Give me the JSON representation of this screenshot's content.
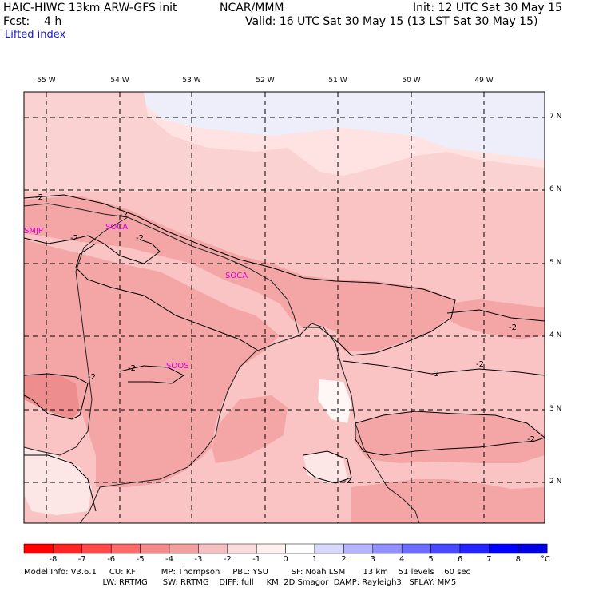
{
  "header": {
    "model": "HAIC-HIWC 13km ARW-GFS init",
    "org": "NCAR/MMM",
    "init": "Init: 12 UTC Sat 30 May 15",
    "fcst": "Fcst:    4 h",
    "valid": "Valid: 16 UTC Sat 30 May 15 (13 LST Sat 30 May 15)",
    "field": "Lifted index"
  },
  "map": {
    "lon_labels": [
      "55 W",
      "54 W",
      "53 W",
      "52 W",
      "51 W",
      "50 W",
      "49 W"
    ],
    "lat_labels": [
      "7 N",
      "6 N",
      "5 N",
      "4 N",
      "3 N",
      "2 N"
    ],
    "stations": [
      "SMJP",
      "SOCA",
      "SOCA",
      "SOOS"
    ],
    "contour_label": "-2",
    "field_colors": {
      "lightest": "#ffe3e3",
      "light": "#fbc4c4",
      "medium": "#f4a6a6",
      "strong": "#ee8d8d",
      "blue": "#eeeefb",
      "white": "#fff6f6"
    }
  },
  "colorbar": {
    "ticks": [
      "-8",
      "-7",
      "-6",
      "-5",
      "-4",
      "-3",
      "-2",
      "-1",
      "0",
      "1",
      "2",
      "3",
      "4",
      "5",
      "6",
      "7",
      "8"
    ],
    "unit": "°C",
    "colors": [
      "#ff0000",
      "#ff2424",
      "#ff4848",
      "#fc6a6a",
      "#f68a8a",
      "#f3a0a0",
      "#f7c0c0",
      "#fadcdc",
      "#fff0f0",
      "#ffffff",
      "#d8d8ff",
      "#b4b4ff",
      "#9090ff",
      "#6c6cff",
      "#4848ff",
      "#2424ff",
      "#0000ff",
      "#0000e0"
    ]
  },
  "footer": {
    "line1": "Model Info: V3.6.1     CU: KF          MP: Thompson     PBL: YSU         SF: Noah LSM       13 km    51 levels    60 sec",
    "line2": "                               LW: RRTMG      SW: RRTMG    DIFF: full     KM: 2D Smagor  DAMP: Rayleigh3   SFLAY: MM5"
  }
}
